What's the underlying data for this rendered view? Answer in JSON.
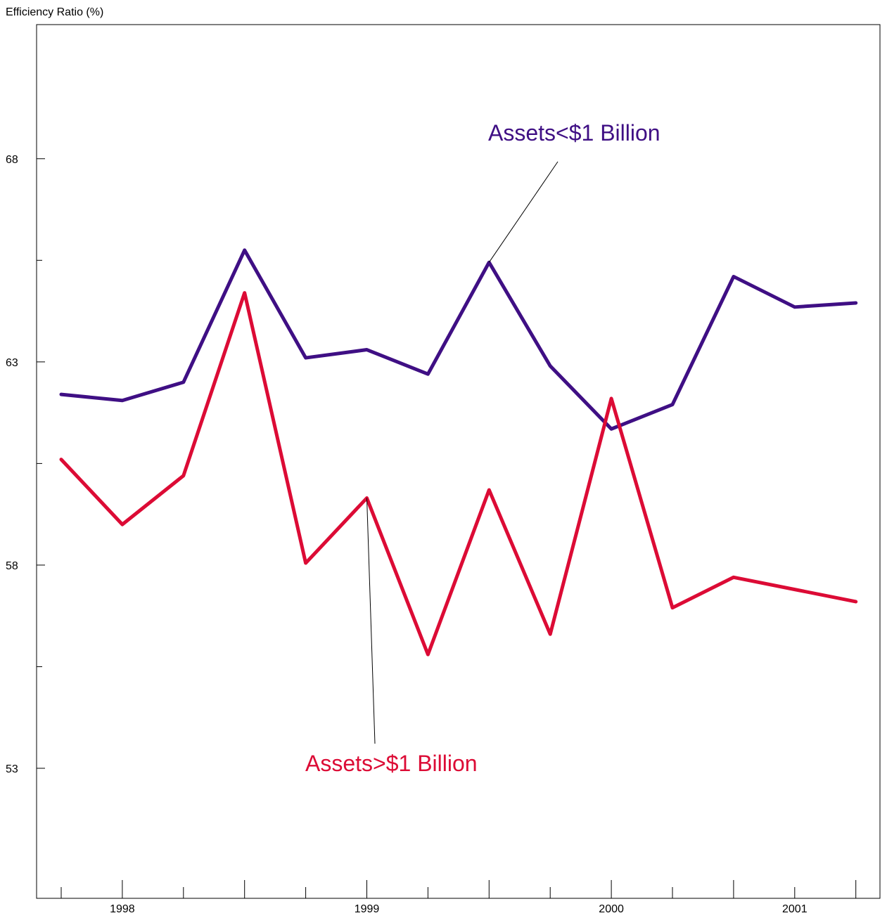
{
  "chart_data": {
    "type": "line",
    "ylabel": "Efficiency Ratio (%)",
    "y_ticks": [
      53,
      58,
      63,
      68
    ],
    "ylim": [
      49.8,
      71.3
    ],
    "x_tick_labels": [
      "1998",
      "1999",
      "2000",
      "2001"
    ],
    "x": [
      "1997 Q4",
      "1998 Q1",
      "1998 Q2",
      "1998 Q3",
      "1998 Q4",
      "1999 Q1",
      "1999 Q2",
      "1999 Q3",
      "1999 Q4",
      "2000 Q1",
      "2000 Q2",
      "2000 Q3",
      "2001 Q1",
      "2001 Q2"
    ],
    "series": [
      {
        "name": "Assets<$1 Billion",
        "color": "#3f0f84",
        "values": [
          62.2,
          62.05,
          62.5,
          65.75,
          63.1,
          63.3,
          62.7,
          65.45,
          62.9,
          61.35,
          61.95,
          65.1,
          64.35,
          64.45
        ]
      },
      {
        "name": "Assets>$1 Billion",
        "color": "#dc0b35",
        "values": [
          60.6,
          59.0,
          60.2,
          64.7,
          58.05,
          59.65,
          55.8,
          59.85,
          56.3,
          62.1,
          56.95,
          57.7,
          57.4,
          57.1
        ]
      }
    ],
    "grid": false,
    "legend": "inline labels with leader lines"
  }
}
